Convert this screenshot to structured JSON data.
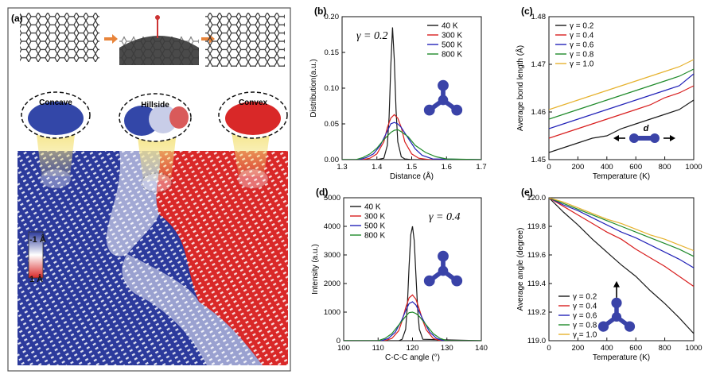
{
  "colors": {
    "s40": "#1a1a1a",
    "s300": "#d81e1e",
    "s500": "#2323b8",
    "s800": "#1f8a2a",
    "g02": "#1a1a1a",
    "g04": "#d81e1e",
    "g06": "#2323b8",
    "g08": "#1f8a2a",
    "g10": "#e6b22e",
    "blue": "#2c3a9c",
    "red": "#d92828",
    "molecule": "#3a43a8",
    "arrow": "#e8843a"
  },
  "panel_a": {
    "label": "(a)",
    "callouts": [
      "Concave",
      "Hillside",
      "Convex"
    ],
    "scale_top": "-1 Å",
    "scale_bottom": "1 Å"
  },
  "chart_data": [
    {
      "id": "b",
      "panel_label": "(b)",
      "type": "line",
      "title": "",
      "annotation": "γ = 0.2",
      "xlabel": "Distance (Å)",
      "ylabel": "Distribution(a.u.)",
      "xlim": [
        1.3,
        1.7
      ],
      "ylim": [
        0,
        0.2
      ],
      "xticks": [
        1.3,
        1.4,
        1.5,
        1.6,
        1.7
      ],
      "xtick_labels": [
        "1.3",
        "1.4",
        "1.5",
        "1.6",
        "1.7"
      ],
      "yticks": [
        0,
        0.05,
        0.1,
        0.15,
        0.2
      ],
      "ytick_labels": [
        "0.00",
        "0.05",
        "0.10",
        "0.15",
        "0.20"
      ],
      "legend_position": "top-left",
      "series": [
        {
          "name": "40 K",
          "color_key": "s40",
          "x": [
            1.3,
            1.4,
            1.42,
            1.43,
            1.435,
            1.44,
            1.445,
            1.45,
            1.455,
            1.46,
            1.47,
            1.48,
            1.5,
            1.7
          ],
          "y": [
            0,
            0,
            0.002,
            0.02,
            0.06,
            0.13,
            0.185,
            0.14,
            0.07,
            0.025,
            0.004,
            0.001,
            0,
            0
          ]
        },
        {
          "name": "300 K",
          "color_key": "s300",
          "x": [
            1.3,
            1.36,
            1.38,
            1.4,
            1.42,
            1.43,
            1.44,
            1.45,
            1.46,
            1.47,
            1.48,
            1.5,
            1.52,
            1.55,
            1.7
          ],
          "y": [
            0,
            0,
            0.002,
            0.008,
            0.025,
            0.045,
            0.058,
            0.063,
            0.058,
            0.045,
            0.025,
            0.008,
            0.002,
            0,
            0
          ]
        },
        {
          "name": "500 K",
          "color_key": "s500",
          "x": [
            1.3,
            1.35,
            1.37,
            1.39,
            1.41,
            1.43,
            1.44,
            1.45,
            1.46,
            1.47,
            1.49,
            1.51,
            1.53,
            1.56,
            1.7
          ],
          "y": [
            0,
            0,
            0.003,
            0.008,
            0.02,
            0.04,
            0.05,
            0.052,
            0.05,
            0.045,
            0.03,
            0.015,
            0.006,
            0.001,
            0
          ]
        },
        {
          "name": "800 K",
          "color_key": "s800",
          "x": [
            1.3,
            1.34,
            1.36,
            1.38,
            1.4,
            1.42,
            1.44,
            1.45,
            1.46,
            1.47,
            1.49,
            1.51,
            1.54,
            1.57,
            1.6,
            1.7
          ],
          "y": [
            0,
            0,
            0.003,
            0.008,
            0.016,
            0.028,
            0.038,
            0.041,
            0.042,
            0.039,
            0.032,
            0.02,
            0.01,
            0.004,
            0.001,
            0
          ]
        }
      ]
    },
    {
      "id": "c",
      "panel_label": "(c)",
      "type": "line",
      "title": "",
      "annotation": "d",
      "xlabel": "Temperature (K)",
      "ylabel": "Average bond length (Å)",
      "xlim": [
        0,
        1000
      ],
      "ylim": [
        1.45,
        1.48
      ],
      "xticks": [
        0,
        200,
        400,
        600,
        800,
        1000
      ],
      "xtick_labels": [
        "0",
        "200",
        "400",
        "600",
        "800",
        "1000"
      ],
      "yticks": [
        1.45,
        1.46,
        1.47,
        1.48
      ],
      "ytick_labels": [
        "1.45",
        "1.46",
        "1.47",
        "1.48"
      ],
      "legend_position": "top-left",
      "series": [
        {
          "name": "γ = 0.2",
          "color_key": "g02",
          "x": [
            0,
            100,
            200,
            300,
            400,
            500,
            600,
            700,
            800,
            900,
            1000
          ],
          "y": [
            1.4515,
            1.4525,
            1.4535,
            1.4545,
            1.455,
            1.4565,
            1.4575,
            1.4585,
            1.4595,
            1.4605,
            1.4625
          ]
        },
        {
          "name": "γ = 0.4",
          "color_key": "g04",
          "x": [
            0,
            100,
            200,
            300,
            400,
            500,
            600,
            700,
            800,
            900,
            1000
          ],
          "y": [
            1.4545,
            1.4555,
            1.4565,
            1.4575,
            1.4585,
            1.4595,
            1.4605,
            1.4615,
            1.463,
            1.464,
            1.4655
          ]
        },
        {
          "name": "γ = 0.6",
          "color_key": "g06",
          "x": [
            0,
            100,
            200,
            300,
            400,
            500,
            600,
            700,
            800,
            900,
            1000
          ],
          "y": [
            1.4565,
            1.4575,
            1.4585,
            1.4595,
            1.4605,
            1.4615,
            1.4625,
            1.4635,
            1.4645,
            1.4655,
            1.468
          ]
        },
        {
          "name": "γ = 0.8",
          "color_key": "g08",
          "x": [
            0,
            100,
            200,
            300,
            400,
            500,
            600,
            700,
            800,
            900,
            1000
          ],
          "y": [
            1.4585,
            1.4595,
            1.4605,
            1.4615,
            1.4625,
            1.4635,
            1.4645,
            1.4655,
            1.4665,
            1.4675,
            1.469
          ]
        },
        {
          "name": "γ = 1.0",
          "color_key": "g10",
          "x": [
            0,
            100,
            200,
            300,
            400,
            500,
            600,
            700,
            800,
            900,
            1000
          ],
          "y": [
            1.4605,
            1.4615,
            1.4625,
            1.4635,
            1.4645,
            1.4655,
            1.4665,
            1.4675,
            1.4685,
            1.4695,
            1.471
          ]
        }
      ]
    },
    {
      "id": "d",
      "panel_label": "(d)",
      "type": "line",
      "title": "",
      "annotation": "γ = 0.4",
      "xlabel": "C-C-C angle (°)",
      "ylabel": "Intensity (a.u.)",
      "xlim": [
        100,
        140
      ],
      "ylim": [
        0,
        5000
      ],
      "xticks": [
        100,
        110,
        120,
        130,
        140
      ],
      "xtick_labels": [
        "100",
        "110",
        "120",
        "130",
        "140"
      ],
      "yticks": [
        0,
        1000,
        2000,
        3000,
        4000,
        5000
      ],
      "ytick_labels": [
        "0",
        "1000",
        "2000",
        "3000",
        "4000",
        "5000"
      ],
      "legend_position": "top-left",
      "series": [
        {
          "name": "40 K",
          "color_key": "s40",
          "x": [
            100,
            116,
            117,
            118,
            118.5,
            119,
            119.5,
            120,
            120.5,
            121,
            121.5,
            122,
            123,
            140
          ],
          "y": [
            0,
            0,
            50,
            400,
            1200,
            2600,
            3700,
            4000,
            3500,
            2300,
            1100,
            400,
            50,
            0
          ]
        },
        {
          "name": "300 K",
          "color_key": "s300",
          "x": [
            100,
            112,
            114,
            116,
            117,
            118,
            119,
            120,
            121,
            122,
            123,
            124,
            126,
            128,
            140
          ],
          "y": [
            0,
            0,
            80,
            350,
            700,
            1150,
            1500,
            1600,
            1450,
            1100,
            700,
            380,
            80,
            0,
            0
          ]
        },
        {
          "name": "500 K",
          "color_key": "s500",
          "x": [
            100,
            111,
            113,
            115,
            117,
            118,
            119,
            120,
            121,
            122,
            123,
            125,
            127,
            129,
            140
          ],
          "y": [
            0,
            0,
            80,
            300,
            750,
            1050,
            1300,
            1360,
            1250,
            1000,
            750,
            300,
            80,
            0,
            0
          ]
        },
        {
          "name": "800 K",
          "color_key": "s800",
          "x": [
            100,
            110,
            112,
            114,
            116,
            118,
            119,
            120,
            121,
            122,
            124,
            126,
            128,
            130,
            140
          ],
          "y": [
            0,
            0,
            80,
            250,
            550,
            850,
            980,
            1000,
            950,
            850,
            550,
            250,
            80,
            0,
            0
          ]
        }
      ]
    },
    {
      "id": "e",
      "panel_label": "(e)",
      "type": "line",
      "title": "",
      "annotation": "",
      "xlabel": "Temperature (K)",
      "ylabel": "Average angle (degree)",
      "xlim": [
        0,
        1000
      ],
      "ylim": [
        119.0,
        120.0
      ],
      "xticks": [
        0,
        200,
        400,
        600,
        800,
        1000
      ],
      "xtick_labels": [
        "0",
        "200",
        "400",
        "600",
        "800",
        "1000"
      ],
      "yticks": [
        119.0,
        119.2,
        119.4,
        119.6,
        119.8,
        120.0
      ],
      "ytick_labels": [
        "119.0",
        "119.2",
        "119.4",
        "119.6",
        "119.8",
        "120.0"
      ],
      "legend_position": "bottom-left",
      "series": [
        {
          "name": "γ = 0.2",
          "color_key": "g02",
          "x": [
            0,
            100,
            200,
            300,
            400,
            500,
            600,
            700,
            800,
            900,
            1000
          ],
          "y": [
            120.0,
            119.9,
            119.81,
            119.71,
            119.62,
            119.53,
            119.45,
            119.35,
            119.26,
            119.16,
            119.05
          ]
        },
        {
          "name": "γ = 0.4",
          "color_key": "g04",
          "x": [
            0,
            100,
            200,
            300,
            400,
            500,
            600,
            700,
            800,
            900,
            1000
          ],
          "y": [
            120.0,
            119.94,
            119.88,
            119.82,
            119.76,
            119.71,
            119.64,
            119.58,
            119.52,
            119.45,
            119.38
          ]
        },
        {
          "name": "γ = 0.6",
          "color_key": "g06",
          "x": [
            0,
            100,
            200,
            300,
            400,
            500,
            600,
            700,
            800,
            900,
            1000
          ],
          "y": [
            120.0,
            119.95,
            119.91,
            119.86,
            119.81,
            119.76,
            119.72,
            119.67,
            119.62,
            119.57,
            119.51
          ]
        },
        {
          "name": "γ = 0.8",
          "color_key": "g08",
          "x": [
            0,
            100,
            200,
            300,
            400,
            500,
            600,
            700,
            800,
            900,
            1000
          ],
          "y": [
            120.0,
            119.96,
            119.92,
            119.88,
            119.84,
            119.8,
            119.76,
            119.72,
            119.68,
            119.64,
            119.59
          ]
        },
        {
          "name": "γ = 1.0",
          "color_key": "g10",
          "x": [
            0,
            100,
            200,
            300,
            400,
            500,
            600,
            700,
            800,
            900,
            1000
          ],
          "y": [
            120.0,
            119.97,
            119.93,
            119.89,
            119.85,
            119.82,
            119.78,
            119.74,
            119.71,
            119.67,
            119.63
          ]
        }
      ]
    }
  ]
}
